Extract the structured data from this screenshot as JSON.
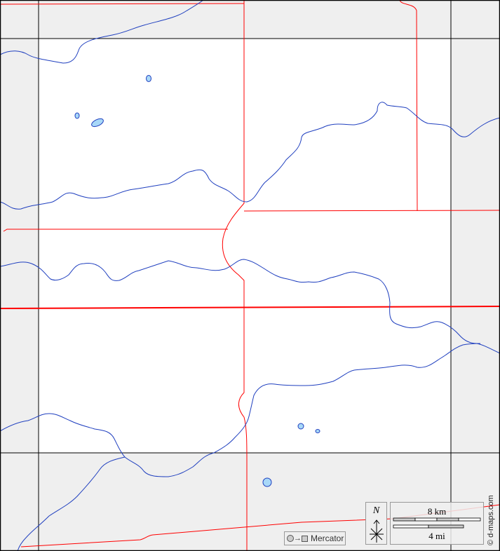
{
  "map": {
    "colors": {
      "outside": "#efefef",
      "inside": "#ffffff",
      "grid": "#000000",
      "boundary": "#ff0000",
      "river": "#1f3fbf",
      "lake": "#a8d8f8"
    },
    "projection_label": "Mercator",
    "north_label": "N",
    "scale": {
      "km_label": "8 km",
      "mi_label": "4 mi"
    },
    "credit": "© d-maps.com"
  }
}
